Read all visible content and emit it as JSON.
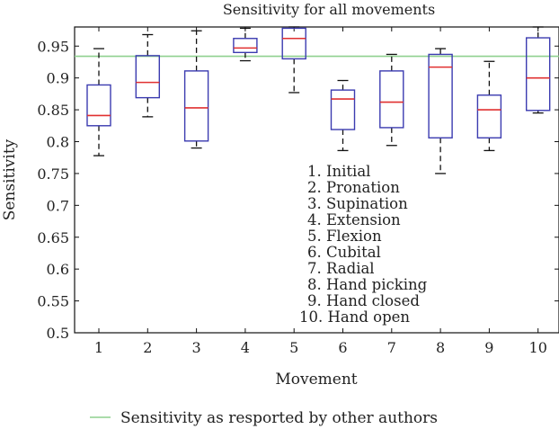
{
  "chart_data": {
    "type": "box",
    "title": "Sensitivity for all movements",
    "xlabel": "Movement",
    "ylabel": "Sensitivity",
    "ylim": [
      0.5,
      0.98
    ],
    "yticks": [
      0.5,
      0.55,
      0.6,
      0.65,
      0.7,
      0.75,
      0.8,
      0.85,
      0.9,
      0.95
    ],
    "ytick_labels": [
      "0.5",
      "0.55",
      "0.6",
      "0.65",
      "0.7",
      "0.75",
      "0.8",
      "0.85",
      "0.9",
      "0.95"
    ],
    "categories": [
      "1",
      "2",
      "3",
      "4",
      "5",
      "6",
      "7",
      "8",
      "9",
      "10"
    ],
    "boxes": [
      {
        "whisker_low": 0.778,
        "q1": 0.825,
        "median": 0.841,
        "q3": 0.889,
        "whisker_high": 0.946
      },
      {
        "whisker_low": 0.839,
        "q1": 0.869,
        "median": 0.893,
        "q3": 0.935,
        "whisker_high": 0.968
      },
      {
        "whisker_low": 0.79,
        "q1": 0.801,
        "median": 0.853,
        "q3": 0.911,
        "whisker_high": 0.974
      },
      {
        "whisker_low": 0.927,
        "q1": 0.94,
        "median": 0.947,
        "q3": 0.962,
        "whisker_high": 0.978
      },
      {
        "whisker_low": 0.877,
        "q1": 0.93,
        "median": 0.962,
        "q3": 0.978,
        "whisker_high": 0.98
      },
      {
        "whisker_low": 0.786,
        "q1": 0.819,
        "median": 0.867,
        "q3": 0.881,
        "whisker_high": 0.896
      },
      {
        "whisker_low": 0.794,
        "q1": 0.822,
        "median": 0.862,
        "q3": 0.911,
        "whisker_high": 0.937
      },
      {
        "whisker_low": 0.75,
        "q1": 0.806,
        "median": 0.917,
        "q3": 0.937,
        "whisker_high": 0.946
      },
      {
        "whisker_low": 0.786,
        "q1": 0.806,
        "median": 0.85,
        "q3": 0.873,
        "whisker_high": 0.926
      },
      {
        "whisker_low": 0.845,
        "q1": 0.849,
        "median": 0.9,
        "q3": 0.963,
        "whisker_high": 0.98
      }
    ],
    "reference_line": {
      "value": 0.934,
      "label": "Sensitivity as resported by other authors"
    },
    "annotations": [
      "1. Initial",
      "2. Pronation",
      "3. Supination",
      "4. Extension",
      "5. Flexion",
      "6. Cubital",
      "7. Radial",
      "8. Hand picking",
      "9. Hand closed",
      "10. Hand open"
    ],
    "colors": {
      "box": "#3b3bb0",
      "median": "#e03030",
      "whisker": "#111111",
      "reference": "#8fd08f",
      "axis": "#111111"
    },
    "legend_placement": "bottom",
    "grid": false
  }
}
